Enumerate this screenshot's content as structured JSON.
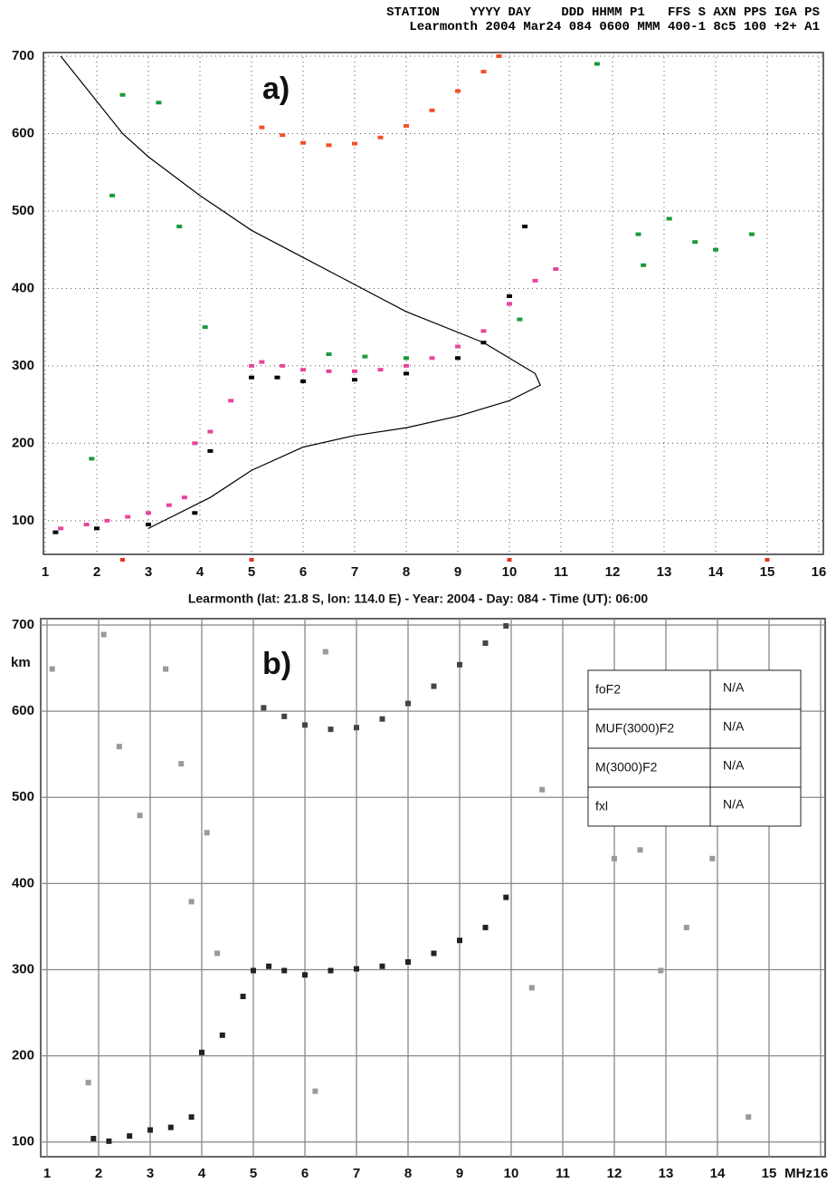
{
  "header": {
    "line1": "STATION    YYYY DAY    DDD HHMM P1   FFS S AXN PPS IGA PS",
    "line2": "Learmonth 2004 Mar24 084 0600 MMM 400-1 8c5 100 +2+ A1"
  },
  "chart_data": [
    {
      "type": "ionogram",
      "label": "a)",
      "xlim": [
        1,
        16
      ],
      "ylim": [
        60,
        700
      ],
      "xticks": [
        1,
        2,
        3,
        4,
        5,
        6,
        7,
        8,
        9,
        10,
        11,
        12,
        13,
        14,
        15,
        16
      ],
      "yticks": [
        100,
        200,
        300,
        400,
        500,
        600,
        700
      ],
      "grid": "dotted",
      "markers": {
        "color": "#e8311a",
        "x": [
          2.5,
          5,
          10,
          15
        ]
      },
      "series": [
        {
          "style": "points",
          "color": "#e8459a",
          "x": [
            1.3,
            1.8,
            2.2,
            2.6,
            3.0,
            3.4,
            3.7,
            3.9,
            4.2,
            4.6,
            5.0,
            5.2,
            5.6,
            6,
            6.5,
            7,
            7.5,
            8,
            8.5,
            9,
            9.5,
            10,
            10.5,
            10.9
          ],
          "values": [
            90,
            95,
            100,
            105,
            110,
            120,
            130,
            200,
            215,
            255,
            300,
            305,
            300,
            295,
            293,
            293,
            295,
            300,
            310,
            325,
            345,
            380,
            410,
            425
          ]
        },
        {
          "style": "points",
          "color": "#f0522a",
          "x": [
            5.2,
            5.6,
            6,
            6.5,
            7,
            7.5,
            8,
            8.5,
            9,
            9.5,
            9.8
          ],
          "values": [
            608,
            598,
            588,
            585,
            587,
            595,
            610,
            630,
            655,
            680,
            700
          ]
        },
        {
          "style": "points",
          "color": "#000000",
          "x": [
            1.2,
            2,
            3,
            3.9,
            4.2,
            5,
            5.5,
            6,
            7,
            8,
            9,
            9.5,
            10,
            10.3
          ],
          "values": [
            85,
            90,
            95,
            110,
            190,
            285,
            285,
            280,
            282,
            290,
            310,
            330,
            390,
            480
          ]
        },
        {
          "style": "points",
          "color": "#1a9a3a",
          "x": [
            1.9,
            2.3,
            2.5,
            3.2,
            3.6,
            4.1,
            6.5,
            7.2,
            8,
            10.2,
            11.7,
            12.5,
            12.6,
            13.1,
            13.6,
            14.0,
            14.7
          ],
          "values": [
            180,
            520,
            650,
            640,
            480,
            350,
            315,
            312,
            310,
            360,
            690,
            470,
            430,
            490,
            460,
            450,
            470
          ]
        },
        {
          "style": "line",
          "color": "#000000",
          "x": [
            1.3,
            2.5,
            3,
            4,
            5,
            6,
            7,
            8,
            9.5,
            10.5,
            10.6,
            10,
            9,
            8,
            7,
            6,
            5,
            4.2,
            3
          ],
          "values": [
            700,
            600,
            570,
            520,
            475,
            440,
            405,
            370,
            330,
            290,
            275,
            255,
            235,
            220,
            210,
            195,
            165,
            130,
            90
          ]
        }
      ]
    },
    {
      "type": "ionogram",
      "label": "b)",
      "subtitle": "Learmonth (lat: 21.8 S, lon: 114.0 E) - Year: 2004 - Day: 084 - Time (UT): 06:00",
      "xlim": [
        1,
        16
      ],
      "ylim": [
        85,
        700
      ],
      "xticks": [
        1,
        2,
        3,
        4,
        5,
        6,
        7,
        8,
        9,
        10,
        11,
        12,
        13,
        14,
        15,
        16
      ],
      "yticks": [
        100,
        200,
        300,
        400,
        500,
        600,
        700
      ],
      "grid": "solid",
      "xunit": "MHz",
      "yunit": "km",
      "table": {
        "rows": [
          [
            "foF2",
            "N/A"
          ],
          [
            "MUF(3000)F2",
            "N/A"
          ],
          [
            "M(3000)F2",
            "N/A"
          ],
          [
            "fxl",
            "N/A"
          ]
        ]
      },
      "series": [
        {
          "style": "points",
          "color": "#222222",
          "x": [
            1.9,
            2.2,
            2.6,
            3.0,
            3.4,
            3.8,
            4.0,
            4.4,
            4.8,
            5.0,
            5.3,
            5.6,
            6,
            6.5,
            7,
            7.5,
            8,
            8.5,
            9,
            9.5,
            9.9
          ],
          "values": [
            105,
            102,
            108,
            115,
            118,
            130,
            205,
            225,
            270,
            300,
            305,
            300,
            295,
            300,
            302,
            305,
            310,
            320,
            335,
            350,
            385
          ]
        },
        {
          "style": "points",
          "color": "#444444",
          "x": [
            5.2,
            5.6,
            6,
            6.5,
            7,
            7.5,
            8,
            8.5,
            9,
            9.5,
            9.9
          ],
          "values": [
            605,
            595,
            585,
            580,
            582,
            592,
            610,
            630,
            655,
            680,
            700
          ]
        },
        {
          "style": "points",
          "color": "#999999",
          "x": [
            1.1,
            1.8,
            2.1,
            2.4,
            2.8,
            3.3,
            3.6,
            3.8,
            4.1,
            4.3,
            6.2,
            6.4,
            10.4,
            10.6,
            12.0,
            12.5,
            12.9,
            13.4,
            13.9,
            14.6
          ],
          "values": [
            650,
            170,
            690,
            560,
            480,
            650,
            540,
            380,
            460,
            320,
            160,
            670,
            280,
            510,
            430,
            440,
            300,
            350,
            430,
            130
          ]
        }
      ]
    }
  ]
}
